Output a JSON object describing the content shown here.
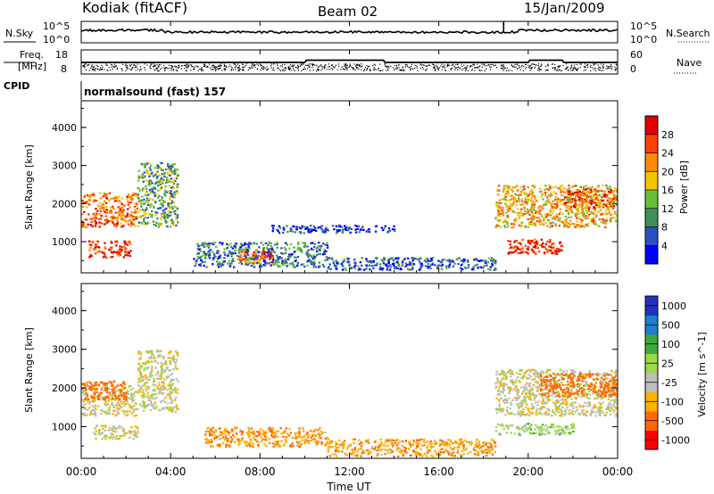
{
  "header": {
    "station": "Kodiak (fitACF)",
    "beam": "Beam 02",
    "date": "15/Jan/2009",
    "cpid_label": "CPID",
    "cpid_text": "normalsound (fast) 157"
  },
  "panels": {
    "nsky": {
      "left_label": "N.Sky",
      "left_ticks": [
        "10^5",
        "10^0"
      ],
      "right_label": "N.Search",
      "right_ticks": [
        "10^5",
        "10^0"
      ]
    },
    "freq": {
      "left_label_1": "Freq.",
      "left_label_2": "[MHz]",
      "left_ticks": [
        "18",
        "8"
      ],
      "right_label": "Nave",
      "right_ticks": [
        "60",
        "0"
      ]
    }
  },
  "colors": {
    "power": [
      "#0000ff",
      "#2d4fc4",
      "#3f8f5a",
      "#6abf3a",
      "#f5c400",
      "#ff8c00",
      "#ff4000",
      "#e00000"
    ],
    "velocity": [
      "#ff0000",
      "#ff6a00",
      "#ffb000",
      "#bdbdbd",
      "#9bd84a",
      "#3caa3c",
      "#1e7fcc",
      "#2233bb"
    ]
  },
  "chart_data": [
    {
      "type": "heatmap",
      "title": "Power",
      "xlabel": "",
      "ylabel": "Slant Range [km]",
      "x_ticks": [
        "00:00",
        "04:00",
        "08:00",
        "12:00",
        "16:00",
        "20:00",
        "00:00"
      ],
      "y_ticks": [
        "1000",
        "2000",
        "3000",
        "4000"
      ],
      "ylim": [
        180,
        4700
      ],
      "colorbar": {
        "label": "Power [dB]",
        "ticks": [
          "4",
          "8",
          "12",
          "16",
          "20",
          "24",
          "28"
        ],
        "range": [
          0,
          32
        ]
      },
      "regions": [
        {
          "t": [
            0.0,
            2.5
          ],
          "r": [
            1400,
            2300
          ],
          "value": 24
        },
        {
          "t": [
            0.3,
            2.2
          ],
          "r": [
            600,
            1050
          ],
          "value": 28
        },
        {
          "t": [
            2.5,
            4.3
          ],
          "r": [
            1400,
            3100
          ],
          "value": 12
        },
        {
          "t": [
            5.0,
            11.0
          ],
          "r": [
            350,
            1000
          ],
          "value": 8
        },
        {
          "t": [
            7.0,
            8.6
          ],
          "r": [
            450,
            800
          ],
          "value": 24
        },
        {
          "t": [
            11.0,
            18.5
          ],
          "r": [
            280,
            600
          ],
          "value": 6
        },
        {
          "t": [
            8.5,
            14.0
          ],
          "r": [
            1250,
            1450
          ],
          "value": 4
        },
        {
          "t": [
            19.0,
            21.5
          ],
          "r": [
            700,
            1100
          ],
          "value": 28
        },
        {
          "t": [
            18.5,
            24.0
          ],
          "r": [
            1400,
            2500
          ],
          "value": 20
        },
        {
          "t": [
            21.5,
            24.0
          ],
          "r": [
            1900,
            2400
          ],
          "value": 26
        }
      ]
    },
    {
      "type": "heatmap",
      "title": "Velocity",
      "xlabel": "Time UT",
      "ylabel": "Slant Range [km]",
      "x_ticks": [
        "00:00",
        "04:00",
        "08:00",
        "12:00",
        "16:00",
        "20:00",
        "00:00"
      ],
      "y_ticks": [
        "1000",
        "2000",
        "3000",
        "4000"
      ],
      "ylim": [
        180,
        4700
      ],
      "colorbar": {
        "label": "Velocity [m s^-1]",
        "ticks": [
          "1000",
          "500",
          "100",
          "25",
          "-25",
          "-100",
          "-500",
          "-1000"
        ]
      },
      "regions": [
        {
          "t": [
            0.0,
            2.5
          ],
          "r": [
            1300,
            2100
          ],
          "value": 0
        },
        {
          "t": [
            0.0,
            2.0
          ],
          "r": [
            1700,
            2200
          ],
          "value": -300
        },
        {
          "t": [
            0.5,
            2.5
          ],
          "r": [
            700,
            1050
          ],
          "value": 0
        },
        {
          "t": [
            2.5,
            4.3
          ],
          "r": [
            1400,
            3000
          ],
          "value": 0
        },
        {
          "t": [
            5.5,
            11.0
          ],
          "r": [
            500,
            1000
          ],
          "value": -80
        },
        {
          "t": [
            11.0,
            18.5
          ],
          "r": [
            250,
            700
          ],
          "value": -80
        },
        {
          "t": [
            18.5,
            24.0
          ],
          "r": [
            1300,
            2500
          ],
          "value": 0
        },
        {
          "t": [
            20.5,
            24.0
          ],
          "r": [
            1800,
            2400
          ],
          "value": -300
        },
        {
          "t": [
            18.5,
            22.0
          ],
          "r": [
            800,
            1100
          ],
          "value": 50
        }
      ]
    }
  ]
}
